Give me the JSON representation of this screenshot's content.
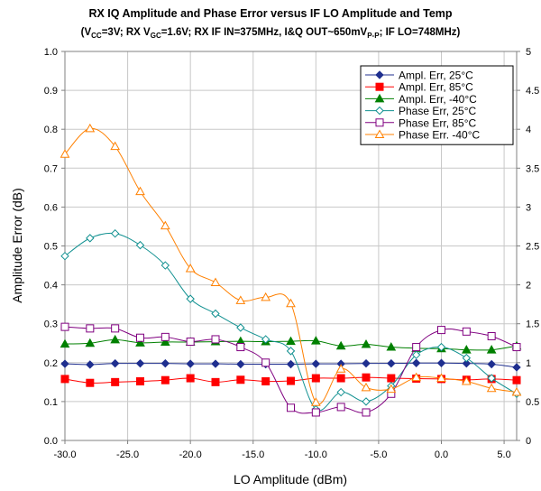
{
  "chart_data": {
    "type": "line",
    "title": "RX IQ Amplitude and Phase Error versus IF LO Amplitude and Temp",
    "subtitle": "(VCC=3V; RX VGC=1.6V; RX IF IN=375MHz, I&Q OUT~650mVP-P; IF LO=748MHz)",
    "subtitle_parts": {
      "p1": "(V",
      "s1": "CC",
      "p2": "=3V; RX V",
      "s2": "GC",
      "p3": "=1.6V; RX IF IN=375MHz, I&Q OUT~650mV",
      "s3": "P-P",
      "p4": "; IF LO=748MHz)"
    },
    "xlabel": "LO Amplitude (dBm)",
    "ylabel": "Amplitude Error (dB)",
    "xlim": [
      -30,
      6
    ],
    "ylim": [
      0,
      1.0
    ],
    "y2lim": [
      0,
      5
    ],
    "xticks": [
      "-30.0",
      "-25.0",
      "-20.0",
      "-15.0",
      "-10.0",
      "-5.0",
      "0.0",
      "5.0"
    ],
    "xtick_values": [
      -30,
      -25,
      -20,
      -15,
      -10,
      -5,
      0,
      5
    ],
    "yticks": [
      "0.0",
      "0.1",
      "0.2",
      "0.3",
      "0.4",
      "0.5",
      "0.6",
      "0.7",
      "0.8",
      "0.9",
      "1.0"
    ],
    "y2ticks": [
      "0",
      "0.5",
      "1",
      "1.5",
      "2",
      "2.5",
      "3",
      "3.5",
      "4",
      "4.5",
      "5"
    ],
    "grid": true,
    "legend_position": "top-right",
    "x": [
      -30,
      -28,
      -26,
      -24,
      -22,
      -20,
      -18,
      -16,
      -14,
      -12,
      -10,
      -8,
      -6,
      -4,
      -2,
      0,
      2,
      4,
      6
    ],
    "series": [
      {
        "name": "Ampl. Err, 25°C",
        "axis": "left",
        "marker": "diamond",
        "filled": true,
        "color": "#1f2f8f",
        "values": [
          0.197,
          0.195,
          0.198,
          0.198,
          0.198,
          0.197,
          0.197,
          0.196,
          0.196,
          0.196,
          0.197,
          0.197,
          0.198,
          0.198,
          0.199,
          0.199,
          0.198,
          0.196,
          0.188
        ]
      },
      {
        "name": "Ampl. Err, 85°C",
        "axis": "left",
        "marker": "square",
        "filled": true,
        "color": "#ff0000",
        "values": [
          0.158,
          0.148,
          0.15,
          0.152,
          0.155,
          0.16,
          0.15,
          0.156,
          0.152,
          0.153,
          0.16,
          0.16,
          0.162,
          0.16,
          0.159,
          0.158,
          0.156,
          0.158,
          0.155
        ]
      },
      {
        "name": "Ampl. Err, -40°C",
        "axis": "left",
        "marker": "triangle",
        "filled": true,
        "color": "#008000",
        "values": [
          0.248,
          0.25,
          0.259,
          0.251,
          0.253,
          0.253,
          0.254,
          0.255,
          0.254,
          0.255,
          0.256,
          0.243,
          0.247,
          0.24,
          0.237,
          0.236,
          0.233,
          0.233,
          0.243
        ]
      },
      {
        "name": "Phase Err, 25°C",
        "axis": "right",
        "marker": "diamond",
        "filled": false,
        "color": "#109090",
        "values": [
          2.37,
          2.6,
          2.66,
          2.51,
          2.25,
          1.82,
          1.63,
          1.45,
          1.3,
          1.15,
          0.4,
          0.62,
          0.5,
          0.7,
          1.1,
          1.2,
          1.06,
          0.8,
          0.6
        ]
      },
      {
        "name": "Phase Err, 85°C",
        "axis": "right",
        "marker": "square",
        "filled": false,
        "color": "#800080",
        "values": [
          1.46,
          1.44,
          1.44,
          1.32,
          1.33,
          1.27,
          1.3,
          1.2,
          1.0,
          0.42,
          0.36,
          0.43,
          0.36,
          0.6,
          1.2,
          1.42,
          1.4,
          1.34,
          1.2
        ]
      },
      {
        "name": "Phase Err. -40°C",
        "axis": "right",
        "marker": "triangle",
        "filled": false,
        "color": "#ff8000",
        "values": [
          3.68,
          4.01,
          3.78,
          3.2,
          2.76,
          2.21,
          2.03,
          1.8,
          1.84,
          1.76,
          0.49,
          0.92,
          0.68,
          0.66,
          0.81,
          0.8,
          0.76,
          0.67,
          0.62
        ]
      }
    ]
  }
}
